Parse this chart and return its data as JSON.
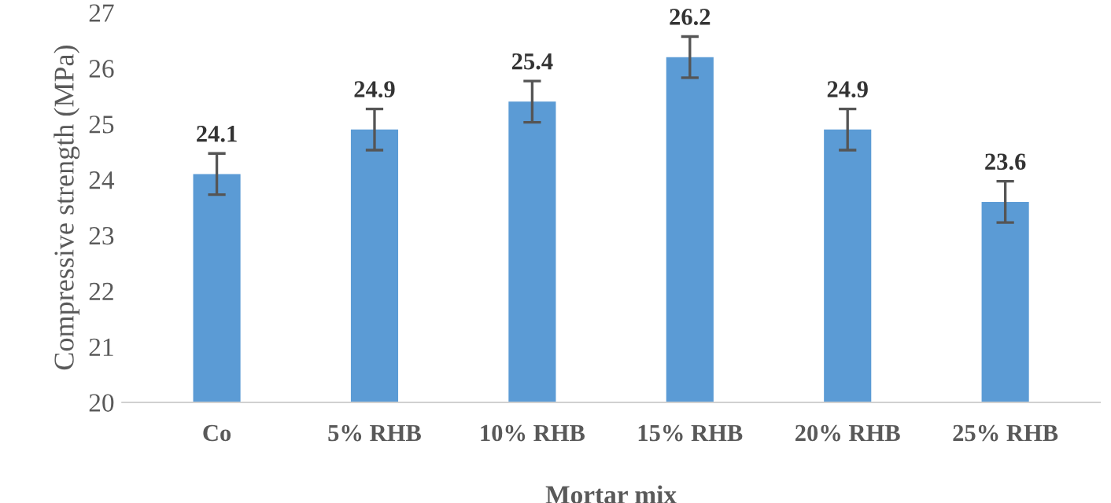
{
  "chart_data": {
    "type": "bar",
    "xlabel": "Mortar mix",
    "ylabel": "Compressive strength (MPa)",
    "categories": [
      "Co",
      "5% RHB",
      "10% RHB",
      "15% RHB",
      "20% RHB",
      "25% RHB"
    ],
    "values": [
      24.1,
      24.9,
      25.4,
      26.2,
      24.9,
      23.6
    ],
    "errors": [
      0.37,
      0.37,
      0.37,
      0.37,
      0.37,
      0.37
    ],
    "color": "#5b9bd5",
    "data_labels": true,
    "ylim": [
      20,
      27
    ],
    "yticks": [
      20,
      21,
      22,
      23,
      24,
      25,
      26,
      27
    ],
    "grid": false
  }
}
